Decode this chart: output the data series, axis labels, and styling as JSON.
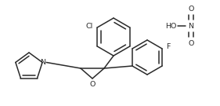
{
  "bg_color": "#ffffff",
  "line_color": "#2a2a2a",
  "line_width": 1.1,
  "font_size": 6.8,
  "text_color": "#2a2a2a",
  "fig_width": 2.81,
  "fig_height": 1.35,
  "dpi": 100,
  "xlim": [
    0,
    281
  ],
  "ylim": [
    0,
    135
  ]
}
